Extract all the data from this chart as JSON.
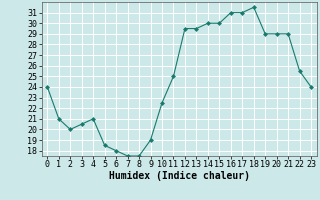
{
  "x": [
    0,
    1,
    2,
    3,
    4,
    5,
    6,
    7,
    8,
    9,
    10,
    11,
    12,
    13,
    14,
    15,
    16,
    17,
    18,
    19,
    20,
    21,
    22,
    23
  ],
  "y": [
    24,
    21,
    20,
    20.5,
    21,
    18.5,
    18,
    17.5,
    17.5,
    19,
    22.5,
    25,
    29.5,
    29.5,
    30,
    30,
    31,
    31,
    31.5,
    29,
    29,
    29,
    25.5,
    24
  ],
  "line_color": "#1a7a6e",
  "marker_color": "#1a7a6e",
  "bg_color": "#cce8e8",
  "grid_color": "#ffffff",
  "xlabel": "Humidex (Indice chaleur)",
  "ylim": [
    17.5,
    32
  ],
  "xlim": [
    -0.5,
    23.5
  ],
  "yticks": [
    18,
    19,
    20,
    21,
    22,
    23,
    24,
    25,
    26,
    27,
    28,
    29,
    30,
    31
  ],
  "xticks": [
    0,
    1,
    2,
    3,
    4,
    5,
    6,
    7,
    8,
    9,
    10,
    11,
    12,
    13,
    14,
    15,
    16,
    17,
    18,
    19,
    20,
    21,
    22,
    23
  ],
  "xlabel_fontsize": 7,
  "tick_fontsize": 6,
  "ylabel_fontsize": 6
}
